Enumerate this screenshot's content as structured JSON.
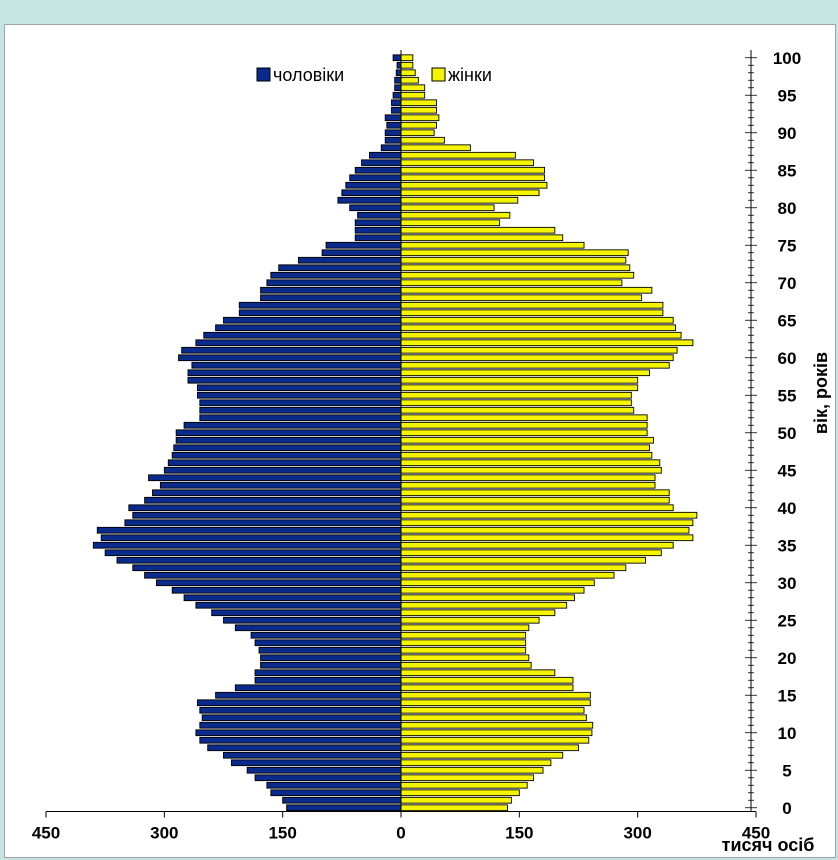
{
  "chart_data": {
    "type": "bar",
    "orientation": "horizontal",
    "layout": "population-pyramid",
    "xlabel": "тисяч осіб",
    "ylabel": "вік, років",
    "xlim": [
      -450,
      450
    ],
    "ylim": [
      0,
      100
    ],
    "x_ticks": [
      -450,
      -300,
      -150,
      0,
      150,
      300,
      450
    ],
    "x_tick_labels": [
      "450",
      "300",
      "150",
      "0",
      "150",
      "300",
      "450"
    ],
    "y_ticks": [
      0,
      5,
      10,
      15,
      20,
      25,
      30,
      35,
      40,
      45,
      50,
      55,
      60,
      65,
      70,
      75,
      80,
      85,
      90,
      95,
      100
    ],
    "y_tick_labels": [
      "0",
      "5",
      "10",
      "15",
      "20",
      "25",
      "30",
      "35",
      "40",
      "45",
      "50",
      "55",
      "60",
      "65",
      "70",
      "75",
      "80",
      "85",
      "90",
      "95",
      "100"
    ],
    "legend_position": "top",
    "grid": false,
    "categories": [
      0,
      1,
      2,
      3,
      4,
      5,
      6,
      7,
      8,
      9,
      10,
      11,
      12,
      13,
      14,
      15,
      16,
      17,
      18,
      19,
      20,
      21,
      22,
      23,
      24,
      25,
      26,
      27,
      28,
      29,
      30,
      31,
      32,
      33,
      34,
      35,
      36,
      37,
      38,
      39,
      40,
      41,
      42,
      43,
      44,
      45,
      46,
      47,
      48,
      49,
      50,
      51,
      52,
      53,
      54,
      55,
      56,
      57,
      58,
      59,
      60,
      61,
      62,
      63,
      64,
      65,
      66,
      67,
      68,
      69,
      70,
      71,
      72,
      73,
      74,
      75,
      76,
      77,
      78,
      79,
      80,
      81,
      82,
      83,
      84,
      85,
      86,
      87,
      88,
      89,
      90,
      91,
      92,
      93,
      94,
      95,
      96,
      97,
      98,
      99,
      100
    ],
    "series": [
      {
        "name": "чоловіки",
        "color": "#0a2a8c",
        "side": "left",
        "values": [
          145,
          150,
          165,
          170,
          185,
          195,
          215,
          225,
          245,
          255,
          260,
          255,
          252,
          255,
          258,
          235,
          210,
          185,
          185,
          178,
          178,
          180,
          185,
          190,
          210,
          225,
          240,
          260,
          275,
          290,
          310,
          325,
          340,
          360,
          375,
          390,
          380,
          385,
          350,
          340,
          345,
          325,
          315,
          305,
          320,
          300,
          295,
          290,
          288,
          285,
          285,
          275,
          255,
          255,
          255,
          258,
          258,
          270,
          270,
          265,
          282,
          278,
          260,
          250,
          235,
          225,
          205,
          205,
          178,
          178,
          170,
          165,
          155,
          130,
          100,
          95,
          58,
          58,
          58,
          55,
          65,
          80,
          75,
          70,
          65,
          58,
          50,
          40,
          25,
          20,
          20,
          18,
          20,
          12,
          12,
          10,
          8,
          8,
          6,
          5,
          10
        ]
      },
      {
        "name": "жінки",
        "color": "#f5f500",
        "side": "right",
        "values": [
          135,
          140,
          150,
          160,
          168,
          180,
          190,
          205,
          225,
          238,
          242,
          243,
          235,
          232,
          240,
          240,
          218,
          218,
          195,
          165,
          162,
          158,
          158,
          158,
          162,
          175,
          195,
          210,
          220,
          232,
          245,
          270,
          285,
          310,
          330,
          345,
          370,
          365,
          370,
          375,
          345,
          340,
          340,
          322,
          322,
          330,
          328,
          318,
          315,
          320,
          312,
          312,
          312,
          295,
          292,
          292,
          300,
          300,
          315,
          340,
          345,
          350,
          370,
          355,
          348,
          345,
          332,
          332,
          305,
          318,
          280,
          295,
          290,
          285,
          288,
          232,
          205,
          195,
          125,
          138,
          118,
          148,
          175,
          185,
          182,
          182,
          168,
          145,
          88,
          55,
          42,
          45,
          48,
          45,
          45,
          30,
          30,
          22,
          18,
          15,
          15
        ]
      }
    ],
    "legend": [
      {
        "label": "чоловіки",
        "color": "#0a2a8c"
      },
      {
        "label": "жінки",
        "color": "#f5f500"
      }
    ]
  }
}
